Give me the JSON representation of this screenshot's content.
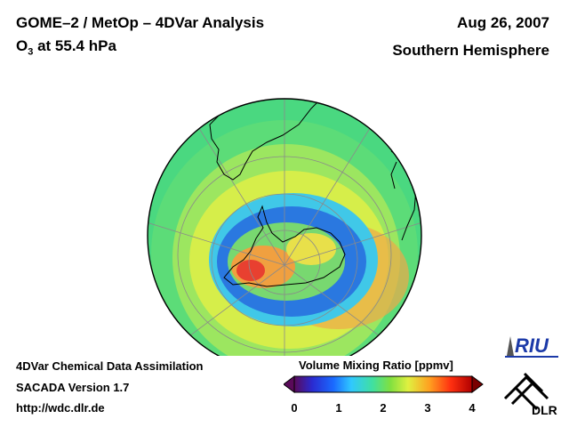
{
  "header": {
    "title_line1": "GOME–2 / MetOp – 4DVar Analysis",
    "title_line2_prefix": "O",
    "title_line2_sub": "3",
    "title_line2_suffix": " at 55.4 hPa",
    "date": "Aug 26, 2007",
    "hemisphere": "Southern Hemisphere"
  },
  "footer": {
    "line1": "4DVar Chemical Data Assimilation",
    "line2": "SACADA Version 1.7",
    "line3": "http://wdc.dlr.de"
  },
  "colorbar": {
    "title": "Volume Mixing Ratio [ppmv]",
    "ticks": [
      "0",
      "1",
      "2",
      "3",
      "4"
    ],
    "colors": [
      "#5a0a5a",
      "#2a2ad0",
      "#1a6aff",
      "#30c8ff",
      "#40e0a0",
      "#80e040",
      "#e0f040",
      "#ffa020",
      "#ff3010",
      "#b00000"
    ]
  },
  "logos": {
    "riu": "RIU",
    "dlr": "DLR"
  },
  "map": {
    "projection": "orthographic south-polar",
    "colors": {
      "background": "#4ad880",
      "ring_yellow": "#c8ee50",
      "vortex_edge": "#30b8e8",
      "vortex_core": "#2060e0",
      "inner_high": "#e04030",
      "coast": "#000000",
      "grid": "#888888"
    }
  }
}
